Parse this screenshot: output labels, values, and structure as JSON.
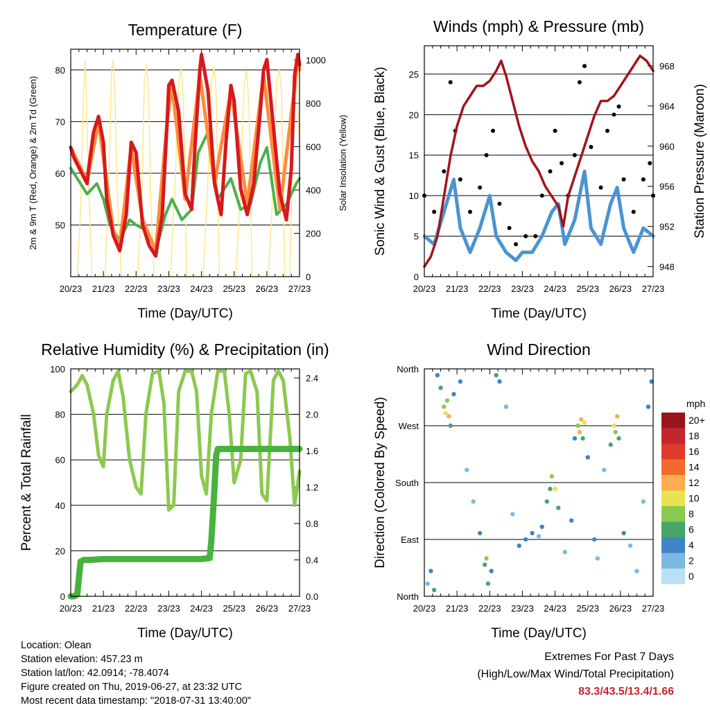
{
  "colors": {
    "temp": "#d7191c",
    "temp_9m": "#fc8d3d",
    "dewpoint": "#4daf4a",
    "solar": "#fde88a",
    "wind": "#4a94d1",
    "gust": "#000000",
    "pressure": "#a1141a",
    "rh": "#8cc94f",
    "precip": "#48b23e"
  },
  "chart_data": [
    {
      "id": "temperature",
      "type": "line",
      "title": "Temperature (F)",
      "xlabel": "Time (Day/UTC)",
      "ylabel": "2m & 9m T (Red, Orange) & 2m Td (Green)",
      "y2label": "Solar Insolation (Yellow)",
      "x_ticks": [
        "20/23",
        "21/23",
        "22/23",
        "23/23",
        "24/23",
        "25/23",
        "26/23",
        "27/23"
      ],
      "xlim": [
        0,
        7
      ],
      "ylim": [
        40,
        84
      ],
      "y_ticks": [
        50,
        60,
        70,
        80
      ],
      "y2lim": [
        0,
        1050
      ],
      "y2_ticks": [
        0,
        200,
        400,
        600,
        800,
        1000
      ],
      "grid": true,
      "series": [
        {
          "name": "2m T",
          "axis": "left",
          "x": [
            0,
            0.1,
            0.3,
            0.5,
            0.55,
            0.7,
            0.85,
            1.0,
            1.1,
            1.3,
            1.5,
            1.7,
            1.85,
            2.0,
            2.1,
            2.2,
            2.4,
            2.6,
            2.8,
            2.95,
            3.0,
            3.1,
            3.3,
            3.5,
            3.7,
            3.8,
            3.95,
            4.0,
            4.2,
            4.4,
            4.6,
            4.75,
            4.9,
            5.0,
            5.2,
            5.4,
            5.6,
            5.8,
            5.9,
            6.0,
            6.2,
            6.4,
            6.6,
            6.75,
            6.85,
            6.95,
            7.0
          ],
          "values": [
            65,
            63,
            60.5,
            58,
            61,
            68,
            71,
            66,
            55,
            48,
            45,
            52,
            66,
            64,
            57,
            50,
            46,
            44,
            52,
            70,
            77,
            78,
            72,
            56,
            53,
            65,
            80,
            83,
            76,
            58,
            52,
            66,
            77,
            74,
            57,
            52,
            58,
            72,
            80,
            82,
            69,
            56,
            51,
            61,
            79,
            83,
            81
          ]
        },
        {
          "name": "9m T",
          "axis": "left",
          "x": [
            0,
            0.5,
            0.85,
            1.3,
            1.5,
            1.85,
            2.2,
            2.6,
            2.95,
            3.1,
            3.5,
            3.95,
            4.4,
            4.9,
            5.4,
            5.9,
            6.4,
            6.95,
            7.0
          ],
          "values": [
            65,
            58.5,
            70,
            49,
            46,
            65,
            51,
            45,
            70,
            77,
            55,
            79,
            58,
            76,
            54,
            79,
            53,
            82,
            80
          ]
        },
        {
          "name": "2m Td",
          "axis": "left",
          "x": [
            0,
            0.2,
            0.5,
            0.8,
            1.0,
            1.2,
            1.5,
            1.8,
            2.0,
            2.3,
            2.6,
            2.9,
            3.1,
            3.4,
            3.7,
            3.9,
            4.2,
            4.5,
            4.7,
            4.9,
            5.2,
            5.5,
            5.8,
            6.0,
            6.3,
            6.6,
            6.9,
            7.0
          ],
          "values": [
            61,
            59,
            56,
            58,
            55,
            50,
            47,
            51,
            50,
            49,
            45,
            52,
            55,
            51,
            53,
            64,
            68,
            55,
            57,
            59,
            53,
            54,
            62,
            65,
            52,
            54,
            58,
            59
          ]
        },
        {
          "name": "Solar",
          "axis": "right",
          "x": [
            0.2,
            0.3,
            0.38,
            0.45,
            0.5,
            0.58,
            0.65,
            1.05,
            1.18,
            1.25,
            1.3,
            1.35,
            1.42,
            1.55,
            2.05,
            2.18,
            2.25,
            2.32,
            2.38,
            2.45,
            2.55,
            3.05,
            3.2,
            3.3,
            3.38,
            3.45,
            3.55,
            4.05,
            4.2,
            4.3,
            4.38,
            4.45,
            4.55,
            5.05,
            5.2,
            5.3,
            5.38,
            5.45,
            5.55,
            6.05,
            6.2,
            6.3,
            6.38,
            6.45,
            6.55,
            6.7,
            6.85,
            6.9,
            7.0
          ],
          "values": [
            0,
            300,
            800,
            1000,
            700,
            300,
            0,
            0,
            500,
            950,
            1000,
            850,
            400,
            0,
            0,
            400,
            900,
            980,
            850,
            350,
            0,
            0,
            450,
            900,
            960,
            800,
            0,
            0,
            450,
            900,
            970,
            850,
            0,
            0,
            400,
            880,
            950,
            800,
            0,
            0,
            450,
            900,
            960,
            850,
            0,
            0,
            900,
            950,
            600
          ]
        }
      ]
    },
    {
      "id": "winds",
      "type": "scatter",
      "title": "Winds (mph) & Pressure (mb)",
      "xlabel": "Time (Day/UTC)",
      "ylabel": "Sonic Wind & Gust (Blue, Black)",
      "y2label": "Station Pressure (Maroon)",
      "x_ticks": [
        "20/23",
        "21/23",
        "22/23",
        "23/23",
        "24/23",
        "25/23",
        "26/23",
        "27/23"
      ],
      "xlim": [
        0,
        7
      ],
      "ylim": [
        0,
        28.5
      ],
      "y_ticks": [
        0,
        5,
        10,
        15,
        20,
        25
      ],
      "y2lim": [
        947,
        970
      ],
      "y2_ticks": [
        948,
        952,
        956,
        960,
        964,
        968
      ],
      "grid": true,
      "series": [
        {
          "name": "Sonic Wind",
          "axis": "left",
          "x": [
            0,
            0.3,
            0.6,
            0.9,
            1.1,
            1.4,
            1.7,
            2.0,
            2.2,
            2.5,
            2.8,
            3.0,
            3.3,
            3.6,
            3.9,
            4.1,
            4.3,
            4.6,
            4.9,
            5.1,
            5.4,
            5.7,
            5.9,
            6.1,
            6.4,
            6.7,
            7.0
          ],
          "values": [
            5,
            4,
            8,
            12,
            6,
            3,
            6,
            10,
            5,
            3,
            2,
            3,
            3,
            5,
            8,
            9,
            4,
            7,
            13,
            6,
            4,
            9,
            11,
            6,
            3,
            6,
            5
          ]
        },
        {
          "name": "Gust",
          "axis": "left",
          "x": [
            0,
            0.3,
            0.6,
            0.8,
            0.95,
            1.1,
            1.4,
            1.7,
            1.9,
            2.1,
            2.3,
            2.6,
            2.8,
            3.1,
            3.4,
            3.6,
            3.85,
            4.0,
            4.2,
            4.4,
            4.6,
            4.75,
            4.9,
            5.1,
            5.4,
            5.6,
            5.8,
            5.95,
            6.1,
            6.4,
            6.7,
            6.9,
            7.0
          ],
          "values": [
            10,
            8,
            13,
            24,
            18,
            12,
            8,
            11,
            15,
            18,
            9,
            6,
            4,
            5,
            5,
            10,
            13,
            18,
            14,
            10,
            15,
            24,
            26,
            16,
            11,
            18,
            20,
            21,
            12,
            8,
            12,
            14,
            10
          ]
        },
        {
          "name": "Station Pressure",
          "axis": "right",
          "x": [
            0,
            0.2,
            0.4,
            0.6,
            0.8,
            1.0,
            1.2,
            1.4,
            1.6,
            1.8,
            2.0,
            2.2,
            2.35,
            2.5,
            2.7,
            2.9,
            3.1,
            3.3,
            3.5,
            3.7,
            3.9,
            4.1,
            4.25,
            4.4,
            4.6,
            4.8,
            5.0,
            5.2,
            5.4,
            5.6,
            5.8,
            6.0,
            6.2,
            6.4,
            6.6,
            6.8,
            6.9,
            7.0
          ],
          "values": [
            948,
            949,
            951,
            955,
            959,
            962,
            964,
            965,
            966,
            966,
            966.5,
            967.5,
            968.5,
            967,
            964.5,
            962,
            960,
            958.5,
            957.5,
            956,
            955,
            954,
            952,
            955,
            957,
            959,
            961,
            963,
            964.5,
            964.5,
            965,
            966,
            967,
            968,
            969,
            968.5,
            968,
            967.5
          ]
        }
      ]
    },
    {
      "id": "humidity",
      "type": "line",
      "title": "Relative Humidity (%) & Precipitation (in)",
      "xlabel": "Time (Day/UTC)",
      "ylabel": "Percent & Total Rainfall",
      "x_ticks": [
        "20/23",
        "21/23",
        "22/23",
        "23/23",
        "24/23",
        "25/23",
        "26/23",
        "27/23"
      ],
      "xlim": [
        0,
        7
      ],
      "ylim": [
        0,
        100
      ],
      "y_ticks": [
        0,
        20,
        40,
        60,
        80,
        100
      ],
      "y2lim": [
        0,
        2.5
      ],
      "y2_ticks": [
        "0.0",
        "0.4",
        "0.8",
        "1.2",
        "1.6",
        "2.0",
        "2.4"
      ],
      "grid": true,
      "series": [
        {
          "name": "RH",
          "axis": "left",
          "x": [
            0,
            0.2,
            0.35,
            0.5,
            0.7,
            0.85,
            1.0,
            1.1,
            1.3,
            1.45,
            1.6,
            1.8,
            2.0,
            2.15,
            2.3,
            2.5,
            2.7,
            2.85,
            3.0,
            3.15,
            3.3,
            3.5,
            3.7,
            3.85,
            4.0,
            4.15,
            4.3,
            4.5,
            4.7,
            4.85,
            5.0,
            5.2,
            5.35,
            5.5,
            5.7,
            5.85,
            6.0,
            6.2,
            6.35,
            6.5,
            6.7,
            6.85,
            7.0
          ],
          "values": [
            90,
            93,
            97,
            93,
            80,
            62,
            57,
            80,
            95,
            99,
            88,
            60,
            48,
            45,
            80,
            98,
            99,
            85,
            38,
            40,
            90,
            99,
            99,
            90,
            53,
            45,
            80,
            99,
            99,
            80,
            50,
            60,
            98,
            99,
            90,
            45,
            42,
            95,
            99,
            95,
            70,
            40,
            55
          ]
        },
        {
          "name": "Total Rainfall",
          "axis": "right",
          "x": [
            0,
            0.1,
            0.2,
            0.25,
            0.3,
            0.4,
            0.6,
            1.0,
            2.0,
            3.0,
            4.0,
            4.25,
            4.3,
            4.35,
            4.4,
            4.45,
            4.5,
            4.6,
            5.0,
            6.0,
            7.0
          ],
          "values": [
            0,
            0,
            0.02,
            0.2,
            0.38,
            0.4,
            0.4,
            0.41,
            0.41,
            0.41,
            0.41,
            0.42,
            0.6,
            0.9,
            1.2,
            1.55,
            1.62,
            1.62,
            1.62,
            1.62,
            1.62
          ]
        }
      ]
    },
    {
      "id": "direction",
      "type": "scatter",
      "title": "Wind Direction",
      "xlabel": "Time (Day/UTC)",
      "ylabel": "Direction (Colored By Speed)",
      "x_ticks": [
        "20/23",
        "21/23",
        "22/23",
        "23/23",
        "24/23",
        "25/23",
        "26/23",
        "27/23"
      ],
      "xlim": [
        0,
        7
      ],
      "ylim": [
        0,
        360
      ],
      "y_tick_labels": [
        "North",
        "East",
        "South",
        "West",
        "North"
      ],
      "y_tick_values": [
        0,
        90,
        180,
        270,
        360
      ],
      "grid": true,
      "legend": {
        "title": "mph",
        "labels": [
          "20+",
          "18",
          "16",
          "14",
          "12",
          "10",
          "8",
          "6",
          "4",
          "2",
          "0"
        ],
        "colors": [
          "#99141a",
          "#c1272d",
          "#e03a2c",
          "#f4692c",
          "#fcad4d",
          "#e8e351",
          "#8cc94f",
          "#48a56a",
          "#3f84c5",
          "#7db8e3",
          "#b9e0f5"
        ],
        "placement": "right"
      },
      "points": [
        [
          0.1,
          20,
          2
        ],
        [
          0.2,
          40,
          4
        ],
        [
          0.3,
          10,
          6
        ],
        [
          0.4,
          350,
          3
        ],
        [
          0.5,
          330,
          6
        ],
        [
          0.6,
          300,
          8
        ],
        [
          0.65,
          290,
          10
        ],
        [
          0.7,
          310,
          8
        ],
        [
          0.75,
          285,
          12
        ],
        [
          0.8,
          270,
          6
        ],
        [
          0.9,
          320,
          4
        ],
        [
          1.1,
          340,
          3
        ],
        [
          1.3,
          200,
          2
        ],
        [
          1.5,
          150,
          1
        ],
        [
          1.7,
          100,
          4
        ],
        [
          1.85,
          50,
          6
        ],
        [
          1.9,
          60,
          8
        ],
        [
          1.95,
          20,
          6
        ],
        [
          2.05,
          40,
          4
        ],
        [
          2.2,
          350,
          6
        ],
        [
          2.3,
          340,
          3
        ],
        [
          2.5,
          300,
          2
        ],
        [
          2.7,
          130,
          2
        ],
        [
          2.9,
          80,
          3
        ],
        [
          3.1,
          90,
          4
        ],
        [
          3.3,
          100,
          3
        ],
        [
          3.5,
          95,
          2
        ],
        [
          3.6,
          110,
          4
        ],
        [
          3.75,
          150,
          5
        ],
        [
          3.85,
          170,
          6
        ],
        [
          3.9,
          190,
          8
        ],
        [
          4.0,
          170,
          10
        ],
        [
          4.1,
          140,
          6
        ],
        [
          4.3,
          70,
          2
        ],
        [
          4.5,
          120,
          3
        ],
        [
          4.6,
          250,
          4
        ],
        [
          4.7,
          270,
          8
        ],
        [
          4.75,
          260,
          12
        ],
        [
          4.8,
          280,
          11
        ],
        [
          4.85,
          250,
          6
        ],
        [
          4.9,
          275,
          10
        ],
        [
          5.0,
          220,
          4
        ],
        [
          5.2,
          90,
          3
        ],
        [
          5.3,
          60,
          2
        ],
        [
          5.5,
          200,
          2
        ],
        [
          5.7,
          240,
          6
        ],
        [
          5.8,
          270,
          10
        ],
        [
          5.85,
          260,
          8
        ],
        [
          5.9,
          285,
          11
        ],
        [
          5.95,
          250,
          6
        ],
        [
          6.1,
          100,
          3
        ],
        [
          6.3,
          80,
          2
        ],
        [
          6.5,
          40,
          2
        ],
        [
          6.7,
          150,
          2
        ],
        [
          6.85,
          300,
          3
        ],
        [
          6.95,
          340,
          4
        ]
      ]
    }
  ],
  "info": {
    "location": "Location: Olean",
    "elevation": "Station elevation: 457.23 m",
    "latlon": "Station lat/lon: 42.0914; -78.4074",
    "created": "Figure created on Thu, 2019-06-27, at 23:32 UTC",
    "recent": "Most recent data timestamp: \"2018-07-31 13:40:00\""
  },
  "extremes": {
    "title": "Extremes For Past 7 Days",
    "subtitle": "(High/Low/Max Wind/Total Precipitation)",
    "values": "83.3/43.5/13.4/1.66"
  }
}
